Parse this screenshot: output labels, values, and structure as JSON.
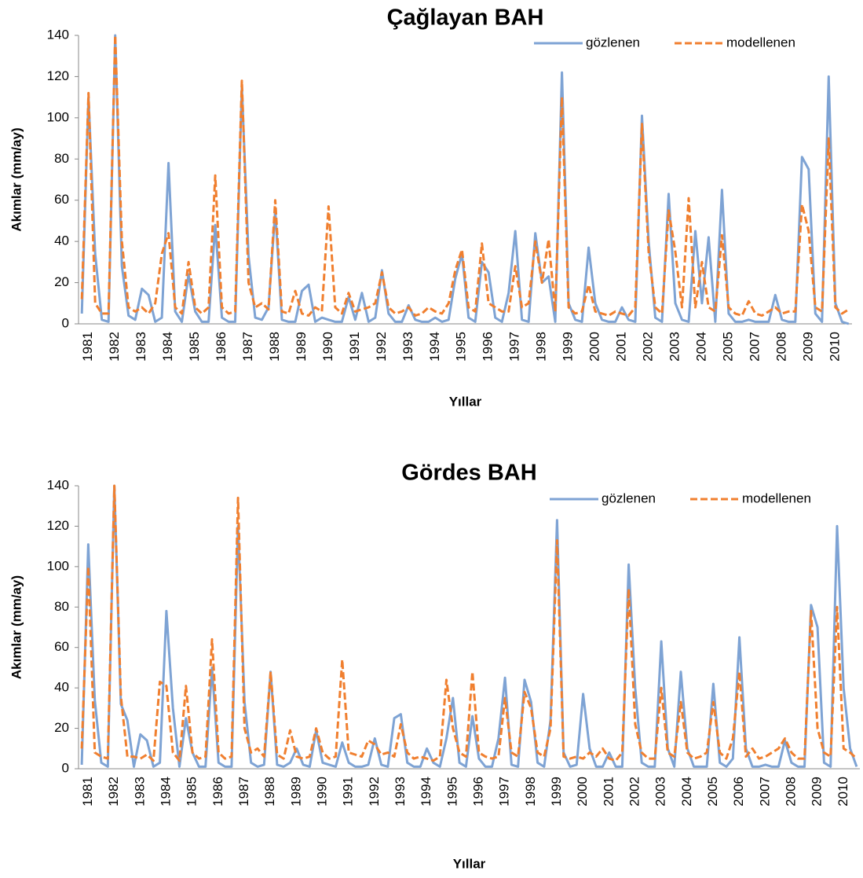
{
  "chart_data": [
    {
      "type": "line",
      "title": "Çağlayan BAH",
      "x_label": "Yıllar",
      "y_label": "Akımlar (mm/ay)",
      "categories": [
        null,
        "1981",
        null,
        null,
        null,
        "1982",
        null,
        null,
        null,
        "1983",
        null,
        null,
        null,
        "1984",
        null,
        null,
        null,
        "1985",
        null,
        null,
        null,
        "1986",
        null,
        null,
        null,
        "1987",
        null,
        null,
        null,
        "1988",
        null,
        null,
        null,
        "1989",
        null,
        null,
        null,
        "1990",
        null,
        null,
        null,
        "1991",
        null,
        null,
        null,
        "1992",
        null,
        null,
        null,
        "1993",
        null,
        null,
        null,
        "1994",
        null,
        null,
        null,
        "1995",
        null,
        null,
        null,
        "1996",
        null,
        null,
        null,
        "1997",
        null,
        null,
        null,
        "1998",
        null,
        null,
        null,
        "1999",
        null,
        null,
        null,
        "2000",
        null,
        null,
        null,
        "2001",
        null,
        null,
        null,
        "2002",
        null,
        null,
        null,
        "2003",
        null,
        null,
        null,
        "2004",
        null,
        null,
        null,
        "2005",
        null,
        null,
        null,
        "2007",
        null,
        null,
        null,
        "2008",
        null,
        null,
        null,
        "2009",
        null,
        null,
        null,
        "2010",
        null,
        null
      ],
      "series": [
        {
          "name": "gözlenen",
          "color": "#7ea3d4",
          "values": [
            5,
            110,
            34,
            2,
            1,
            140,
            28,
            4,
            2,
            17,
            14,
            1,
            3,
            78,
            6,
            1,
            24,
            6,
            1,
            1,
            48,
            3,
            1,
            1,
            115,
            33,
            3,
            2,
            8,
            55,
            2,
            1,
            1,
            16,
            19,
            1,
            3,
            2,
            1,
            1,
            13,
            2,
            15,
            1,
            3,
            26,
            5,
            1,
            1,
            9,
            2,
            1,
            1,
            3,
            1,
            2,
            22,
            34,
            3,
            1,
            30,
            25,
            3,
            1,
            15,
            45,
            2,
            1,
            44,
            20,
            23,
            1,
            122,
            10,
            2,
            1,
            37,
            10,
            2,
            1,
            1,
            8,
            2,
            1,
            101,
            40,
            3,
            1,
            63,
            10,
            2,
            1,
            45,
            10,
            42,
            1,
            65,
            5,
            1,
            1,
            2,
            1,
            1,
            1,
            14,
            2,
            1,
            1,
            81,
            75,
            5,
            1,
            120,
            10,
            1,
            0
          ]
        },
        {
          "name": "modellenen",
          "color": "#f07f2f",
          "dashed": true,
          "values": [
            12,
            112,
            10,
            5,
            5,
            140,
            40,
            8,
            6,
            8,
            5,
            10,
            34,
            44,
            8,
            5,
            30,
            8,
            5,
            8,
            72,
            8,
            5,
            6,
            118,
            20,
            8,
            10,
            7,
            60,
            6,
            5,
            16,
            5,
            4,
            8,
            6,
            57,
            8,
            5,
            15,
            6,
            7,
            8,
            10,
            25,
            8,
            5,
            6,
            8,
            4,
            5,
            8,
            6,
            5,
            10,
            26,
            36,
            8,
            6,
            39,
            10,
            8,
            6,
            6,
            28,
            8,
            10,
            40,
            20,
            41,
            6,
            110,
            8,
            5,
            6,
            19,
            6,
            5,
            4,
            6,
            5,
            4,
            8,
            97,
            35,
            8,
            5,
            55,
            35,
            8,
            61,
            8,
            30,
            8,
            6,
            43,
            8,
            5,
            4,
            11,
            5,
            4,
            6,
            8,
            5,
            6,
            6,
            58,
            45,
            8,
            6,
            90,
            8,
            5,
            7
          ]
        }
      ],
      "ylim": [
        0,
        140
      ],
      "yticks": [
        0,
        20,
        40,
        60,
        80,
        100,
        120,
        140
      ],
      "legend": "top-right"
    },
    {
      "type": "line",
      "title": "Gördes BAH",
      "x_label": "Yıllar",
      "y_label": "Akımlar (mm/ay)",
      "categories": [
        null,
        "1981",
        null,
        null,
        null,
        "1982",
        null,
        null,
        null,
        "1983",
        null,
        null,
        null,
        "1984",
        null,
        null,
        null,
        "1985",
        null,
        null,
        null,
        "1986",
        null,
        null,
        null,
        "1987",
        null,
        null,
        null,
        "1988",
        null,
        null,
        null,
        "1989",
        null,
        null,
        null,
        "1990",
        null,
        null,
        null,
        "1991",
        null,
        null,
        null,
        "1992",
        null,
        null,
        null,
        "1993",
        null,
        null,
        null,
        "1994",
        null,
        null,
        null,
        "1995",
        null,
        null,
        null,
        "1996",
        null,
        null,
        null,
        "1997",
        null,
        null,
        null,
        "1998",
        null,
        null,
        null,
        "1999",
        null,
        null,
        null,
        "2000",
        null,
        null,
        null,
        "2001",
        null,
        null,
        null,
        "2002",
        null,
        null,
        null,
        "2003",
        null,
        null,
        null,
        "2004",
        null,
        null,
        null,
        "2005",
        null,
        null,
        null,
        "2006",
        null,
        null,
        null,
        "2007",
        null,
        null,
        null,
        "2008",
        null,
        null,
        null,
        "2009",
        null,
        null,
        null,
        "2010",
        null,
        null
      ],
      "series": [
        {
          "name": "gözlenen",
          "color": "#7ea3d4",
          "values": [
            2,
            111,
            34,
            3,
            1,
            140,
            32,
            24,
            1,
            17,
            14,
            1,
            3,
            78,
            30,
            1,
            25,
            8,
            1,
            1,
            50,
            3,
            1,
            1,
            120,
            33,
            3,
            1,
            2,
            48,
            2,
            1,
            3,
            10,
            2,
            1,
            19,
            3,
            2,
            1,
            13,
            3,
            1,
            1,
            2,
            15,
            2,
            1,
            25,
            27,
            3,
            1,
            1,
            10,
            3,
            1,
            15,
            35,
            3,
            1,
            26,
            5,
            1,
            1,
            15,
            45,
            2,
            1,
            44,
            33,
            3,
            1,
            24,
            123,
            8,
            1,
            2,
            37,
            10,
            1,
            1,
            8,
            1,
            1,
            101,
            40,
            3,
            1,
            1,
            63,
            10,
            1,
            48,
            10,
            1,
            1,
            1,
            42,
            3,
            1,
            5,
            65,
            10,
            1,
            1,
            2,
            1,
            1,
            14,
            3,
            1,
            1,
            81,
            70,
            3,
            1,
            120,
            40,
            10,
            1
          ]
        },
        {
          "name": "modellenen",
          "color": "#f07f2f",
          "dashed": true,
          "values": [
            10,
            100,
            8,
            6,
            5,
            140,
            36,
            6,
            6,
            5,
            7,
            4,
            43,
            41,
            8,
            4,
            41,
            8,
            5,
            6,
            64,
            8,
            5,
            6,
            134,
            20,
            8,
            10,
            6,
            48,
            7,
            5,
            19,
            6,
            5,
            6,
            20,
            8,
            5,
            6,
            54,
            8,
            7,
            6,
            14,
            12,
            7,
            8,
            6,
            22,
            8,
            5,
            6,
            5,
            4,
            6,
            44,
            20,
            8,
            6,
            48,
            8,
            6,
            5,
            6,
            35,
            8,
            6,
            38,
            30,
            8,
            6,
            20,
            113,
            6,
            5,
            6,
            5,
            8,
            6,
            10,
            5,
            4,
            8,
            89,
            22,
            8,
            5,
            5,
            40,
            8,
            6,
            33,
            8,
            5,
            6,
            8,
            33,
            8,
            5,
            15,
            48,
            6,
            10,
            5,
            6,
            8,
            10,
            15,
            8,
            5,
            5,
            78,
            20,
            8,
            6,
            80,
            10,
            8,
            5
          ]
        }
      ],
      "ylim": [
        0,
        140
      ],
      "yticks": [
        0,
        20,
        40,
        60,
        80,
        100,
        120,
        140
      ],
      "legend": "top-right"
    }
  ]
}
